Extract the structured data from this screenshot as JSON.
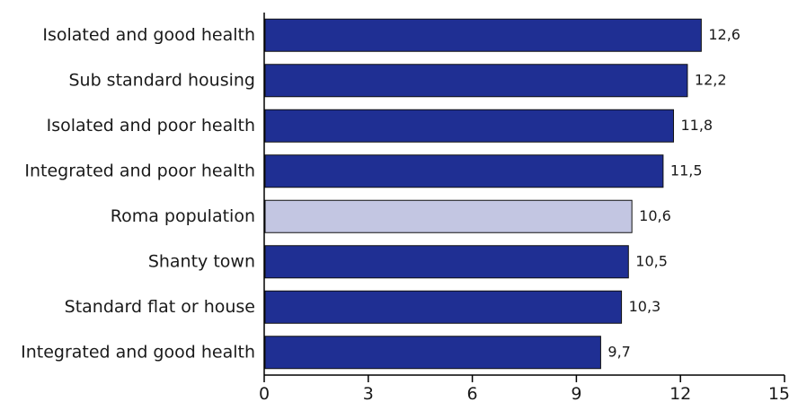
{
  "chart_data": {
    "type": "bar",
    "orientation": "horizontal",
    "categories": [
      "Isolated and good health",
      "Sub standard housing",
      "Isolated and poor health",
      "Integrated and poor health",
      "Roma population",
      "Shanty town",
      "Standard flat or house",
      "Integrated and good health"
    ],
    "values": [
      12.6,
      12.2,
      11.8,
      11.5,
      10.6,
      10.5,
      10.3,
      9.7
    ],
    "value_labels": [
      "12,6",
      "12,2",
      "11,8",
      "11,5",
      "10,6",
      "10,5",
      "10,3",
      "9,7"
    ],
    "highlight_index": 4,
    "xlim": [
      0,
      15
    ],
    "xticks": [
      0,
      3,
      6,
      9,
      12,
      15
    ],
    "xtick_labels": [
      "0",
      "3",
      "6",
      "9",
      "12",
      "15"
    ],
    "grid": false,
    "colors": {
      "bar": "#1f2f93",
      "highlight": "#c3c6e2",
      "bar_stroke": "#111111",
      "axis": "#000000"
    }
  }
}
